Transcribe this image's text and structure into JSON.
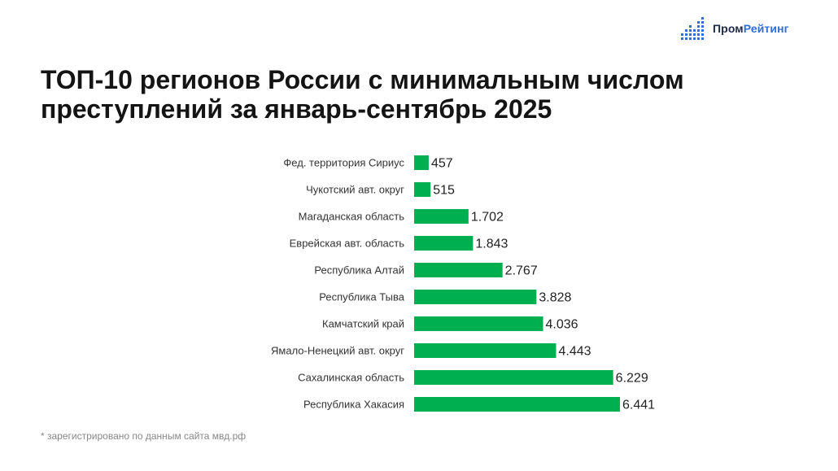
{
  "brand": {
    "name_part1": "Пром",
    "name_part2": "Рейтинг",
    "color_dark": "#1f2a44",
    "color_accent": "#2f6fd6",
    "icon": "bar-dots-logo-icon"
  },
  "title_lines": [
    "ТОП-10 регионов России с минимальным числом",
    "преступлений за январь-сентябрь 2025"
  ],
  "footnote": "* зарегистрировано по данным сайта мвд.рф",
  "chart_data": {
    "type": "bar",
    "orientation": "horizontal",
    "bar_color": "#00b050",
    "categories": [
      "Фед. территория Сириус",
      "Чукотский авт. округ",
      "Магаданская область",
      "Еврейская авт. область",
      "Республика Алтай",
      "Республика Тыва",
      "Камчатский край",
      "Ямало-Ненецкий авт. округ",
      "Сахалинская область",
      "Республика Хакасия"
    ],
    "values": [
      457,
      515,
      1702,
      1843,
      2767,
      3828,
      4036,
      4443,
      6229,
      6441
    ],
    "value_labels": [
      "457",
      "515",
      "1.702",
      "1.843",
      "2.767",
      "3.828",
      "4.036",
      "4.443",
      "6.229",
      "6.441"
    ],
    "xlim": [
      0,
      6441
    ],
    "grid": false,
    "legend": "none"
  }
}
